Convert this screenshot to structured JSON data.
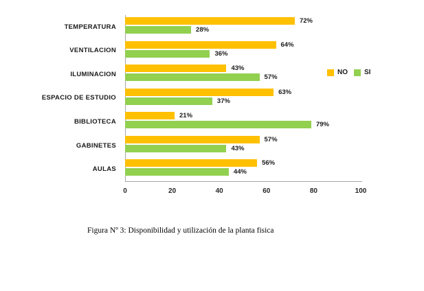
{
  "chart_data": {
    "type": "bar",
    "orientation": "horizontal",
    "title": "",
    "categories": [
      "TEMPERATURA",
      "VENTILACION",
      "ILUMINACION",
      "ESPACIO DE ESTUDIO",
      "BIBLIOTECA",
      "GABINETES",
      "AULAS"
    ],
    "series": [
      {
        "name": "NO",
        "color": "#FFC000",
        "values": [
          72,
          64,
          43,
          63,
          21,
          57,
          56
        ]
      },
      {
        "name": "SI",
        "color": "#92D050",
        "values": [
          28,
          36,
          57,
          37,
          79,
          43,
          44
        ]
      }
    ],
    "value_suffix": "%",
    "x_ticks": [
      "0",
      "20",
      "40",
      "60",
      "80",
      "100"
    ],
    "xlim": [
      0,
      100
    ],
    "grid": false,
    "legend_position": "middle-right",
    "axis_color": "#a6a6a6"
  },
  "caption": {
    "text": "Figura Nº 3: Disponibilidad y utilización de la planta fisica"
  }
}
